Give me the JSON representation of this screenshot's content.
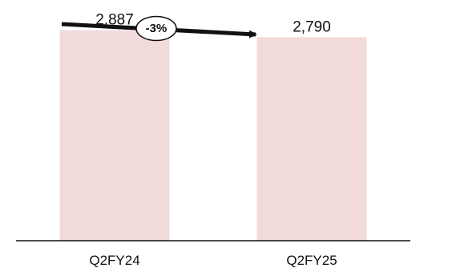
{
  "chart_data": {
    "type": "bar",
    "categories": [
      "Q2FY24",
      "Q2FY25"
    ],
    "values": [
      2887,
      2790
    ],
    "data_labels": [
      "2,887",
      "2,790"
    ],
    "ylim": [
      0,
      3300
    ],
    "grid": false,
    "colors": {
      "bar": "#f2dbdb",
      "axis": "#111111",
      "arrow": "#111111"
    },
    "annotation": {
      "type": "change-arrow",
      "from": "Q2FY24",
      "to": "Q2FY25",
      "label": "-3%"
    }
  }
}
